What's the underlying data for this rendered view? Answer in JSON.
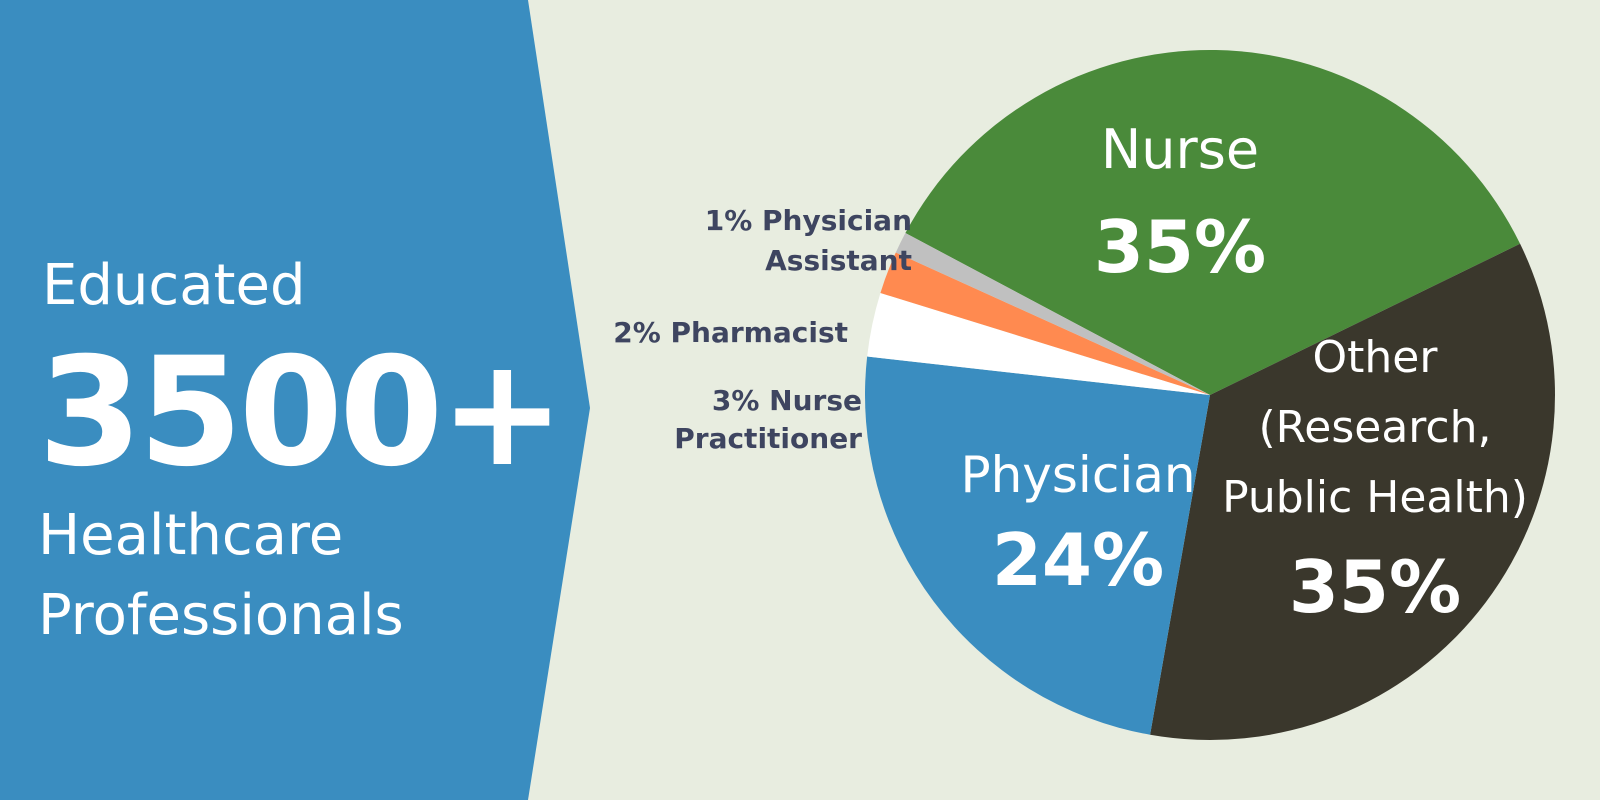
{
  "left_panel": {
    "line1": "Educated",
    "count": "3500+",
    "line3": "Healthcare",
    "line4": "Professionals"
  },
  "colors": {
    "left_panel": "#3a8dc0",
    "background": "#e8ede0",
    "nurse": "#4a8a3a",
    "other": "#3a372c",
    "physician": "#3a8dc0",
    "nurse_practitioner": "#ffffff",
    "pharmacist": "#ff8a50",
    "physician_assistant": "#c0c0c0",
    "outside_label": "#3e4560"
  },
  "chart_data": {
    "type": "pie",
    "title": "",
    "slices": [
      {
        "key": "nurse",
        "value": 35,
        "label_lines": [
          "Nurse"
        ],
        "pct_label": "35%"
      },
      {
        "key": "other",
        "value": 35,
        "label_lines": [
          "Other",
          "(Research,",
          "Public Health)"
        ],
        "pct_label": "35%"
      },
      {
        "key": "physician",
        "value": 24,
        "label_lines": [
          "Physician"
        ],
        "pct_label": "24%"
      },
      {
        "key": "nurse_practitioner",
        "value": 3,
        "label_lines": [
          "3% Nurse",
          "Practitioner"
        ]
      },
      {
        "key": "pharmacist",
        "value": 2,
        "label_lines": [
          "2% Pharmacist"
        ]
      },
      {
        "key": "physician_assistant",
        "value": 1,
        "label_lines": [
          "1% Physician",
          "Assistant"
        ]
      }
    ]
  }
}
